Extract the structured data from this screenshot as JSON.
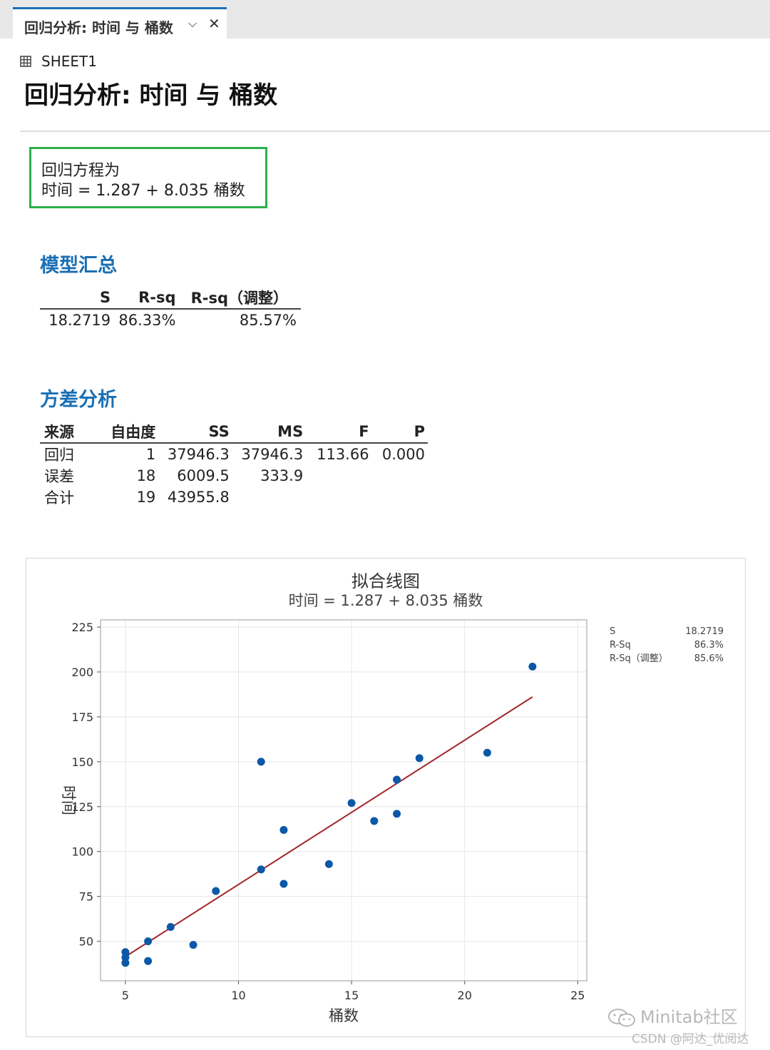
{
  "tab": {
    "title": "回归分析: 时间 与 桶数"
  },
  "sheet": {
    "name": "SHEET1"
  },
  "page_title": "回归分析: 时间 与 桶数",
  "equation": {
    "heading": "回归方程为",
    "formula": "时间 = 1.287 + 8.035 桶数"
  },
  "model_summary": {
    "title": "模型汇总",
    "headers": [
      "S",
      "R-sq",
      "R-sq（调整）"
    ],
    "row": [
      "18.2719",
      "86.33%",
      "85.57%"
    ]
  },
  "anova": {
    "title": "方差分析",
    "headers": [
      "来源",
      "自由度",
      "SS",
      "MS",
      "F",
      "P"
    ],
    "rows": [
      [
        "回归",
        "1",
        "37946.3",
        "37946.3",
        "113.66",
        "0.000"
      ],
      [
        "误差",
        "18",
        "6009.5",
        "333.9",
        "",
        ""
      ],
      [
        "合计",
        "19",
        "43955.8",
        "",
        "",
        ""
      ]
    ]
  },
  "chart_data": {
    "type": "scatter",
    "title": "拟合线图",
    "subtitle": "时间 = 1.287 + 8.035 桶数",
    "xlabel": "桶数",
    "ylabel": "时间",
    "xlim": [
      3.9,
      25.4
    ],
    "ylim": [
      28,
      229
    ],
    "xticks": [
      5,
      10,
      15,
      20,
      25
    ],
    "yticks": [
      50,
      75,
      100,
      125,
      150,
      175,
      200,
      225
    ],
    "grid": true,
    "points": [
      [
        5,
        44
      ],
      [
        5,
        41
      ],
      [
        5,
        38
      ],
      [
        6,
        50
      ],
      [
        6,
        39
      ],
      [
        7,
        58
      ],
      [
        8,
        48
      ],
      [
        9,
        78
      ],
      [
        11,
        150
      ],
      [
        11,
        90
      ],
      [
        12,
        112
      ],
      [
        12,
        82
      ],
      [
        14,
        93
      ],
      [
        15,
        127
      ],
      [
        16,
        117
      ],
      [
        17,
        140
      ],
      [
        17,
        121
      ],
      [
        18,
        152
      ],
      [
        21,
        155
      ],
      [
        23,
        203
      ]
    ],
    "fit_line": {
      "intercept": 1.287,
      "slope": 8.035,
      "x_range": [
        5,
        23
      ]
    },
    "colors": {
      "points": "#0b58a8",
      "fit_line": "#a3262a",
      "grid": "#e6e6e6"
    },
    "stats": [
      {
        "label": "S",
        "value": "18.2719"
      },
      {
        "label": "R-Sq",
        "value": "86.3%"
      },
      {
        "label": "R-Sq（调整）",
        "value": "85.6%"
      }
    ]
  },
  "watermark": {
    "text": "Minitab社区",
    "credit": "CSDN @阿达_优阅达"
  }
}
